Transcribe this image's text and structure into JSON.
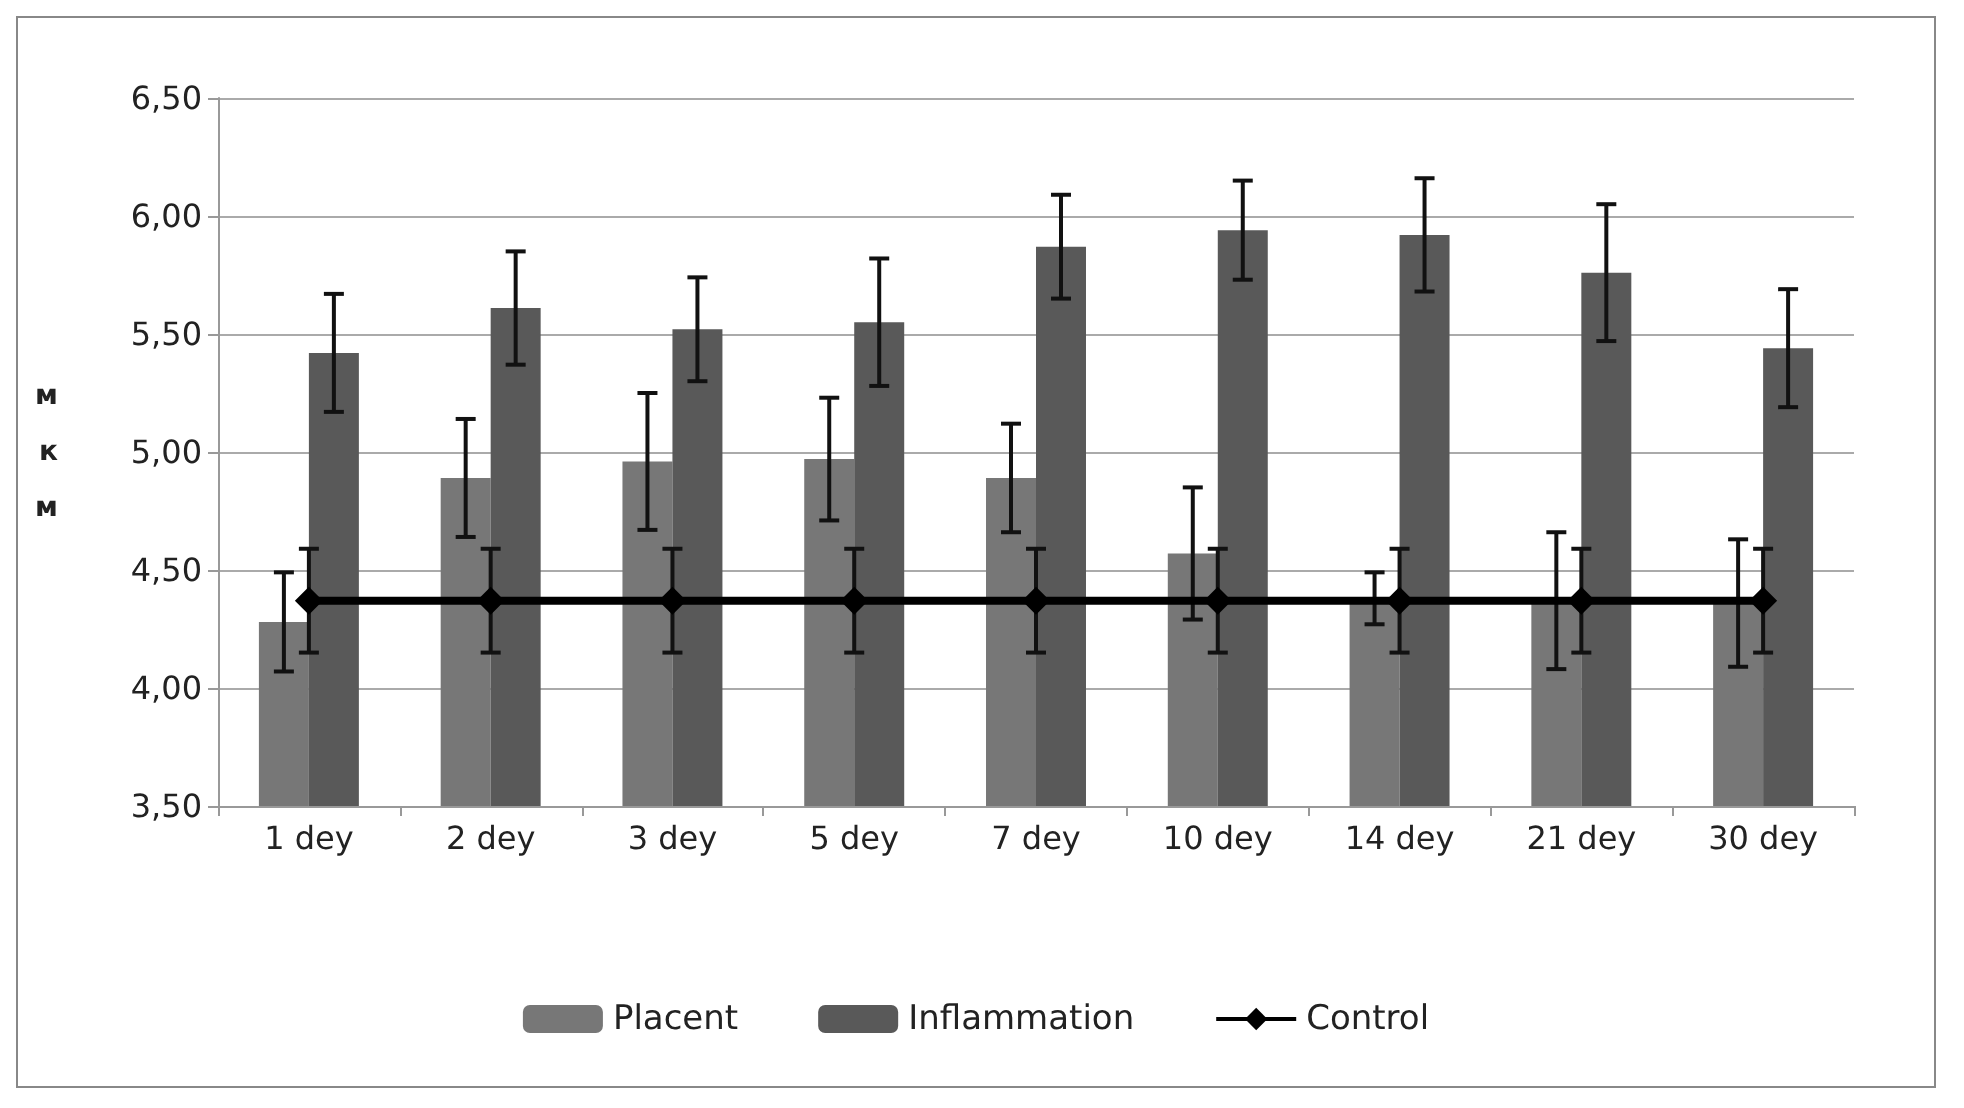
{
  "chart_data": {
    "type": "bar",
    "ylabel": "мкм",
    "categories": [
      "1 dey",
      "2 dey",
      "3 dey",
      "5 dey",
      "7 dey",
      "10 dey",
      "14 dey",
      "21 dey",
      "30 dey"
    ],
    "series": [
      {
        "name": "Placent",
        "color": "#777777",
        "values": [
          4.28,
          4.89,
          4.96,
          4.97,
          4.89,
          4.57,
          4.38,
          4.37,
          4.36
        ],
        "errors": [
          0.21,
          0.25,
          0.29,
          0.26,
          0.23,
          0.28,
          0.11,
          0.29,
          0.27
        ]
      },
      {
        "name": "Inflammation",
        "color": "#595959",
        "values": [
          5.42,
          5.61,
          5.52,
          5.55,
          5.87,
          5.94,
          5.92,
          5.76,
          5.44
        ],
        "errors": [
          0.25,
          0.24,
          0.22,
          0.27,
          0.22,
          0.21,
          0.24,
          0.29,
          0.25
        ]
      },
      {
        "name": "Control",
        "type": "line",
        "color": "#000000",
        "marker": "diamond",
        "values": [
          4.37,
          4.37,
          4.37,
          4.37,
          4.37,
          4.37,
          4.37,
          4.37,
          4.37
        ],
        "errors": [
          0.22,
          0.22,
          0.22,
          0.22,
          0.22,
          0.22,
          0.22,
          0.22,
          0.22
        ]
      }
    ],
    "ylim": [
      3.5,
      6.5
    ],
    "yticks": [
      {
        "value": 3.5,
        "label": "3,50"
      },
      {
        "value": 4,
        "label": "4,00"
      },
      {
        "value": 4.5,
        "label": "4,50"
      },
      {
        "value": 5,
        "label": "5,00"
      },
      {
        "value": 5.5,
        "label": "5,50"
      },
      {
        "value": 6,
        "label": "6,00"
      },
      {
        "value": 6.5,
        "label": "6,50"
      }
    ],
    "grid": "y",
    "legend": "bottom"
  }
}
